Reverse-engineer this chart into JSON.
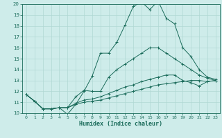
{
  "xlabel": "Humidex (Indice chaleur)",
  "xlim": [
    -0.5,
    23.5
  ],
  "ylim": [
    10,
    20
  ],
  "xticks": [
    0,
    1,
    2,
    3,
    4,
    5,
    6,
    7,
    8,
    9,
    10,
    11,
    12,
    13,
    14,
    15,
    16,
    17,
    18,
    19,
    20,
    21,
    22,
    23
  ],
  "yticks": [
    10,
    11,
    12,
    13,
    14,
    15,
    16,
    17,
    18,
    19,
    20
  ],
  "bg_color": "#ceecea",
  "line_color": "#1a6b5a",
  "grid_color": "#b0d8d4",
  "lines": [
    [
      11.7,
      11.1,
      10.4,
      10.4,
      10.5,
      9.9,
      10.8,
      12.0,
      13.4,
      15.5,
      15.5,
      16.5,
      18.1,
      19.8,
      20.2,
      19.5,
      20.3,
      18.7,
      18.2,
      16.0,
      15.2,
      14.0,
      13.3,
      13.1
    ],
    [
      11.7,
      11.1,
      10.4,
      10.4,
      10.5,
      10.5,
      11.5,
      12.1,
      12.0,
      12.0,
      13.3,
      14.0,
      14.5,
      15.0,
      15.5,
      16.0,
      16.0,
      15.5,
      15.0,
      14.5,
      14.0,
      13.5,
      13.2,
      13.0
    ],
    [
      11.7,
      11.1,
      10.4,
      10.4,
      10.5,
      10.5,
      10.9,
      11.2,
      11.3,
      11.5,
      11.8,
      12.1,
      12.4,
      12.6,
      12.9,
      13.1,
      13.3,
      13.5,
      13.5,
      13.0,
      12.8,
      12.5,
      12.9,
      13.0
    ],
    [
      11.7,
      11.1,
      10.4,
      10.4,
      10.5,
      10.5,
      10.8,
      11.0,
      11.1,
      11.2,
      11.4,
      11.6,
      11.8,
      12.0,
      12.2,
      12.4,
      12.6,
      12.7,
      12.8,
      12.9,
      13.0,
      13.0,
      12.9,
      13.0
    ]
  ]
}
